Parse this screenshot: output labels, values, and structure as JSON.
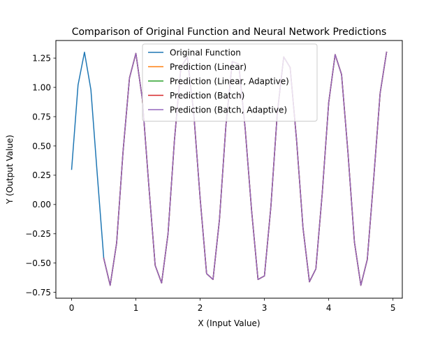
{
  "chart_data": {
    "type": "line",
    "title": "Comparison of Original Function and Neural Network Predictions",
    "xlabel": "X (Input Value)",
    "ylabel": "Y (Output Value)",
    "xlim": [
      -0.245,
      5.145
    ],
    "ylim": [
      -0.8,
      1.4
    ],
    "xticks": [
      0,
      1,
      2,
      3,
      4,
      5
    ],
    "xtick_labels": [
      "0",
      "1",
      "2",
      "3",
      "4",
      "5"
    ],
    "yticks": [
      -0.75,
      -0.5,
      -0.25,
      0.0,
      0.25,
      0.5,
      0.75,
      1.0,
      1.25
    ],
    "ytick_labels": [
      "−0.75",
      "−0.50",
      "−0.25",
      "0.00",
      "0.25",
      "0.50",
      "0.75",
      "1.00",
      "1.25"
    ],
    "grid": false,
    "legend_position": "top-center",
    "series": [
      {
        "name": "Original Function",
        "color": "#1f77b4",
        "x": [
          0.0,
          0.1,
          0.2,
          0.3,
          0.4,
          0.5,
          0.6,
          0.7,
          0.8,
          0.9,
          1.0,
          1.1,
          1.2,
          1.3,
          1.4,
          1.5,
          1.6,
          1.7,
          1.8,
          1.9,
          2.0,
          2.1,
          2.2,
          2.3,
          2.4,
          2.5,
          2.6,
          2.7,
          2.8,
          2.9,
          3.0,
          3.1,
          3.2,
          3.3,
          3.4,
          3.5,
          3.6,
          3.7,
          3.8,
          3.9,
          4.0,
          4.1,
          4.2,
          4.3,
          4.4,
          4.5,
          4.6,
          4.7,
          4.8,
          4.9
        ],
        "y": [
          0.3,
          1.02,
          1.3,
          0.98,
          0.25,
          -0.46,
          -0.69,
          -0.33,
          0.45,
          1.08,
          1.29,
          0.9,
          0.17,
          -0.52,
          -0.67,
          -0.25,
          0.55,
          1.17,
          1.26,
          0.78,
          0.05,
          -0.59,
          -0.64,
          -0.13,
          0.67,
          1.22,
          1.2,
          0.65,
          -0.05,
          -0.64,
          -0.61,
          -0.02,
          0.78,
          1.26,
          1.17,
          0.55,
          -0.2,
          -0.66,
          -0.55,
          0.1,
          0.87,
          1.28,
          1.11,
          0.44,
          -0.32,
          -0.69,
          -0.47,
          0.22,
          0.95,
          1.3
        ]
      },
      {
        "name": "Prediction (Linear)",
        "color": "#ff7f0e",
        "x": [
          0.5,
          0.6,
          0.7,
          0.8,
          0.9,
          1.0,
          1.1,
          1.2,
          1.3,
          1.4,
          1.5,
          1.6,
          1.7,
          1.8,
          1.9,
          2.0,
          2.1,
          2.2,
          2.3,
          2.4,
          2.5,
          2.6,
          2.7,
          2.8,
          2.9,
          3.0,
          3.1,
          3.2,
          3.3,
          3.4,
          3.5,
          3.6,
          3.7,
          3.8,
          3.9,
          4.0,
          4.1,
          4.2,
          4.3,
          4.4,
          4.5,
          4.6,
          4.7,
          4.8,
          4.9
        ],
        "y": [
          -0.46,
          -0.69,
          -0.33,
          0.45,
          1.08,
          1.29,
          0.9,
          0.17,
          -0.52,
          -0.67,
          -0.25,
          0.55,
          1.17,
          1.26,
          0.78,
          0.05,
          -0.59,
          -0.64,
          -0.13,
          0.67,
          1.22,
          1.2,
          0.65,
          -0.05,
          -0.64,
          -0.61,
          -0.02,
          0.78,
          1.26,
          1.17,
          0.55,
          -0.2,
          -0.66,
          -0.55,
          0.1,
          0.87,
          1.28,
          1.11,
          0.44,
          -0.32,
          -0.69,
          -0.47,
          0.22,
          0.95,
          1.3
        ]
      },
      {
        "name": "Prediction (Linear, Adaptive)",
        "color": "#2ca02c",
        "x": [
          0.5,
          0.6,
          0.7,
          0.8,
          0.9,
          1.0,
          1.1,
          1.2,
          1.3,
          1.4,
          1.5,
          1.6,
          1.7,
          1.8,
          1.9,
          2.0,
          2.1,
          2.2,
          2.3,
          2.4,
          2.5,
          2.6,
          2.7,
          2.8,
          2.9,
          3.0,
          3.1,
          3.2,
          3.3,
          3.4,
          3.5,
          3.6,
          3.7,
          3.8,
          3.9,
          4.0,
          4.1,
          4.2,
          4.3,
          4.4,
          4.5,
          4.6,
          4.7,
          4.8,
          4.9
        ],
        "y": [
          -0.46,
          -0.69,
          -0.33,
          0.45,
          1.08,
          1.29,
          0.9,
          0.17,
          -0.52,
          -0.67,
          -0.25,
          0.55,
          1.17,
          1.26,
          0.78,
          0.05,
          -0.59,
          -0.64,
          -0.13,
          0.67,
          1.22,
          1.2,
          0.65,
          -0.05,
          -0.64,
          -0.61,
          -0.02,
          0.78,
          1.26,
          1.17,
          0.55,
          -0.2,
          -0.66,
          -0.55,
          0.1,
          0.87,
          1.28,
          1.11,
          0.44,
          -0.32,
          -0.69,
          -0.47,
          0.22,
          0.95,
          1.3
        ]
      },
      {
        "name": "Prediction (Batch)",
        "color": "#d62728",
        "x": [
          0.5,
          0.6,
          0.7,
          0.8,
          0.9,
          1.0,
          1.1,
          1.2,
          1.3,
          1.4,
          1.5,
          1.6,
          1.7,
          1.8,
          1.9,
          2.0,
          2.1,
          2.2,
          2.3,
          2.4,
          2.5,
          2.6,
          2.7,
          2.8,
          2.9,
          3.0,
          3.1,
          3.2,
          3.3,
          3.4,
          3.5,
          3.6,
          3.7,
          3.8,
          3.9,
          4.0,
          4.1,
          4.2,
          4.3,
          4.4,
          4.5,
          4.6,
          4.7,
          4.8,
          4.9
        ],
        "y": [
          -0.46,
          -0.69,
          -0.33,
          0.45,
          1.08,
          1.29,
          0.9,
          0.17,
          -0.52,
          -0.67,
          -0.25,
          0.55,
          1.17,
          1.26,
          0.78,
          0.05,
          -0.59,
          -0.64,
          -0.13,
          0.67,
          1.22,
          1.2,
          0.65,
          -0.05,
          -0.64,
          -0.61,
          -0.02,
          0.78,
          1.26,
          1.17,
          0.55,
          -0.2,
          -0.66,
          -0.55,
          0.1,
          0.87,
          1.28,
          1.11,
          0.44,
          -0.32,
          -0.69,
          -0.47,
          0.22,
          0.95,
          1.3
        ]
      },
      {
        "name": "Prediction (Batch, Adaptive)",
        "color": "#9467bd",
        "x": [
          0.5,
          0.6,
          0.7,
          0.8,
          0.9,
          1.0,
          1.1,
          1.2,
          1.3,
          1.4,
          1.5,
          1.6,
          1.7,
          1.8,
          1.9,
          2.0,
          2.1,
          2.2,
          2.3,
          2.4,
          2.5,
          2.6,
          2.7,
          2.8,
          2.9,
          3.0,
          3.1,
          3.2,
          3.3,
          3.4,
          3.5,
          3.6,
          3.7,
          3.8,
          3.9,
          4.0,
          4.1,
          4.2,
          4.3,
          4.4,
          4.5,
          4.6,
          4.7,
          4.8,
          4.9
        ],
        "y": [
          -0.46,
          -0.69,
          -0.33,
          0.45,
          1.08,
          1.29,
          0.9,
          0.17,
          -0.52,
          -0.67,
          -0.25,
          0.55,
          1.17,
          1.26,
          0.78,
          0.05,
          -0.59,
          -0.64,
          -0.13,
          0.67,
          1.22,
          1.2,
          0.65,
          -0.05,
          -0.64,
          -0.61,
          -0.02,
          0.78,
          1.26,
          1.17,
          0.55,
          -0.2,
          -0.66,
          -0.55,
          0.1,
          0.87,
          1.28,
          1.11,
          0.44,
          -0.32,
          -0.69,
          -0.47,
          0.22,
          0.95,
          1.3
        ]
      }
    ]
  }
}
